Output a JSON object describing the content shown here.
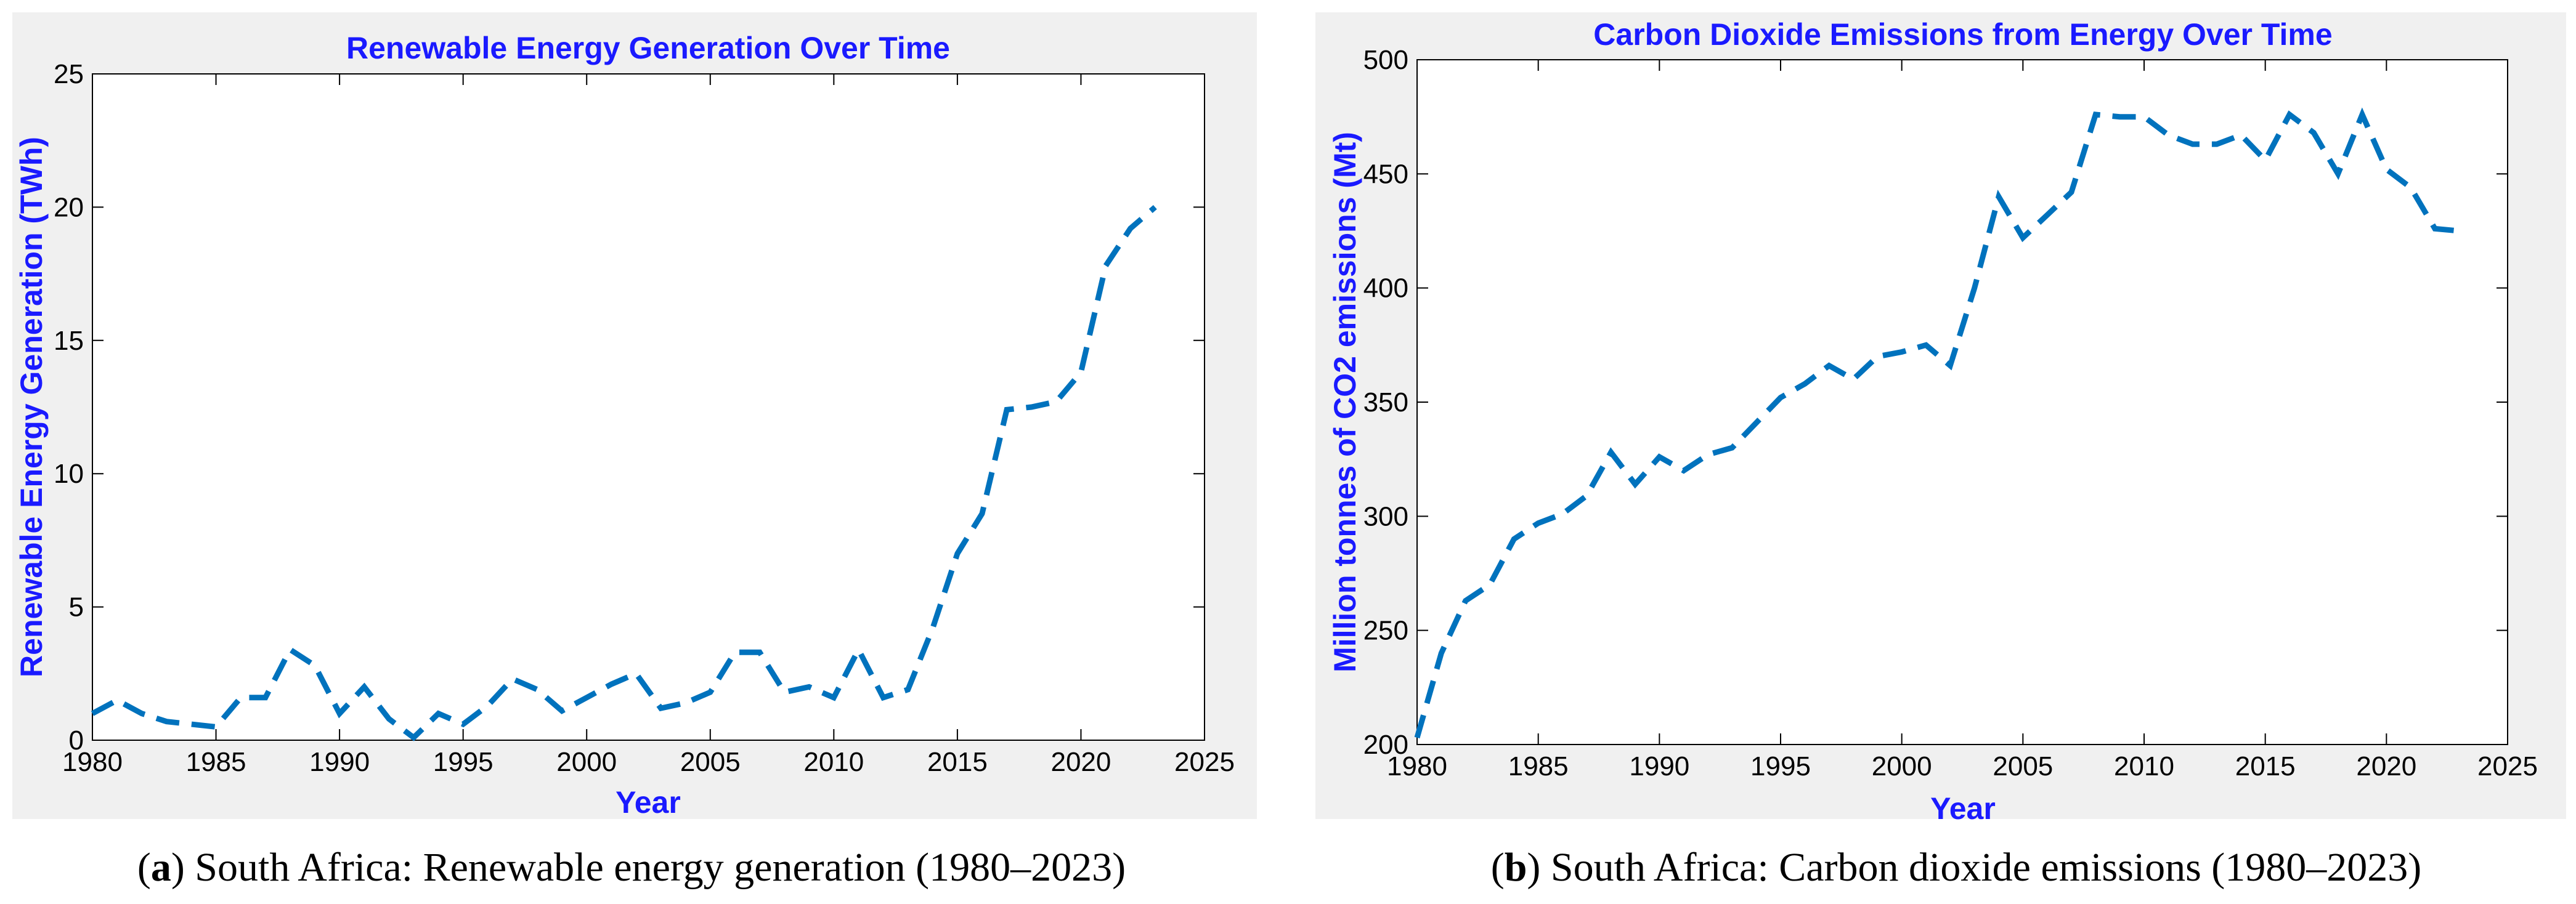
{
  "captions": [
    {
      "label": "a",
      "text": " South Africa: Renewable energy generation (1980–2023)"
    },
    {
      "label": "b",
      "text": " South Africa: Carbon dioxide emissions (1980–2023)"
    }
  ],
  "colors": {
    "line": "#0072bd",
    "title": "#1a1aff",
    "panel_bg": "#f0f0f0",
    "plot_bg": "#ffffff"
  },
  "chart_data": [
    {
      "type": "line",
      "title": "Renewable Energy Generation Over Time",
      "xlabel": "Year",
      "ylabel": "Renewable Energy Generation (TWh)",
      "xlim": [
        1980,
        2025
      ],
      "ylim": [
        0,
        25
      ],
      "xticks": [
        1980,
        1985,
        1990,
        1995,
        2000,
        2005,
        2010,
        2015,
        2020,
        2025
      ],
      "yticks": [
        0,
        5,
        10,
        15,
        20,
        25
      ],
      "grid": false,
      "line_style": "dashed",
      "series": [
        {
          "name": "Renewable energy generation",
          "x": [
            1980,
            1981,
            1982,
            1983,
            1984,
            1985,
            1986,
            1987,
            1988,
            1989,
            1990,
            1991,
            1992,
            1993,
            1994,
            1995,
            1996,
            1997,
            1998,
            1999,
            2000,
            2001,
            2002,
            2003,
            2004,
            2005,
            2006,
            2007,
            2008,
            2009,
            2010,
            2011,
            2012,
            2013,
            2014,
            2015,
            2016,
            2017,
            2018,
            2019,
            2020,
            2021,
            2022,
            2023
          ],
          "values": [
            1.0,
            1.5,
            1.0,
            0.7,
            0.6,
            0.5,
            1.6,
            1.6,
            3.4,
            2.8,
            1.0,
            2.0,
            0.8,
            0.1,
            1.0,
            0.6,
            1.3,
            2.3,
            1.9,
            1.1,
            1.6,
            2.1,
            2.5,
            1.2,
            1.4,
            1.8,
            3.3,
            3.3,
            1.8,
            2.0,
            1.6,
            3.4,
            1.6,
            1.9,
            4.2,
            7.0,
            8.5,
            12.4,
            12.5,
            12.7,
            13.8,
            17.8,
            19.2,
            20.0
          ]
        }
      ]
    },
    {
      "type": "line",
      "title": "Carbon Dioxide Emissions from Energy Over Time",
      "xlabel": "Year",
      "ylabel": "Million tonnes of CO2 emissions (Mt)",
      "xlim": [
        1980,
        2025
      ],
      "ylim": [
        200,
        500
      ],
      "xticks": [
        1980,
        1985,
        1990,
        1995,
        2000,
        2005,
        2010,
        2015,
        2020,
        2025
      ],
      "yticks": [
        200,
        250,
        300,
        350,
        400,
        450,
        500
      ],
      "grid": false,
      "line_style": "dashed",
      "series": [
        {
          "name": "CO2 emissions",
          "x": [
            1980,
            1981,
            1982,
            1983,
            1984,
            1985,
            1986,
            1987,
            1988,
            1989,
            1990,
            1991,
            1992,
            1993,
            1994,
            1995,
            1996,
            1997,
            1998,
            1999,
            2000,
            2001,
            2002,
            2003,
            2004,
            2005,
            2006,
            2007,
            2008,
            2009,
            2010,
            2011,
            2012,
            2013,
            2014,
            2015,
            2016,
            2017,
            2018,
            2019,
            2020,
            2021,
            2022,
            2023
          ],
          "values": [
            203,
            240,
            263,
            270,
            290,
            297,
            301,
            309,
            328,
            314,
            326,
            320,
            327,
            330,
            341,
            352,
            358,
            366,
            360,
            370,
            372,
            375,
            366,
            400,
            440,
            422,
            432,
            442,
            476,
            475,
            475,
            467,
            463,
            463,
            467,
            456,
            476,
            468,
            450,
            476,
            452,
            444,
            426,
            425
          ]
        }
      ]
    }
  ]
}
